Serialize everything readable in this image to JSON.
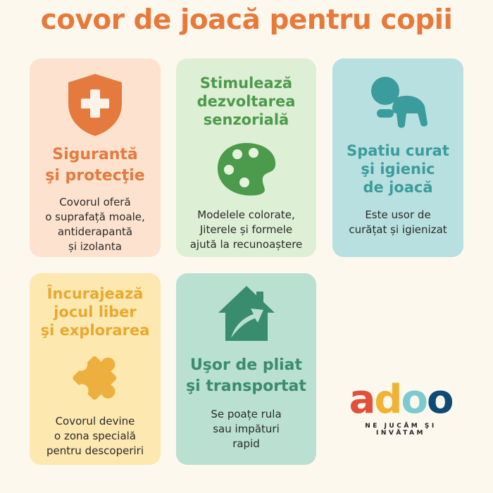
{
  "title": "covor de joacă pentru copii",
  "colors": {
    "background": "#FDF8EE",
    "title": "#E8793A",
    "orange": "#E57A3E",
    "green": "#4C9A4C",
    "teal": "#3A9C9C",
    "yellow": "#E8A92F",
    "mint": "#3A8C6E"
  },
  "cards": [
    {
      "icon": "shield-plus-icon",
      "title_lines": [
        "Sigurantă",
        "şi protecţie"
      ],
      "text_lines": [
        "Covorul oferă",
        "o suprafață moale,",
        "antiderapantă",
        "și izolanta"
      ]
    },
    {
      "icon": "palette-icon",
      "title_lines": [
        "Stimulează",
        "dezvoltarea",
        "senzorială"
      ],
      "text_lines": [
        "Modelele colorate,",
        "Jiterele și formele",
        "ajută la recunoaștere"
      ]
    },
    {
      "icon": "crawling-baby-icon",
      "title_lines": [
        "Spatiu curat",
        "şi igienic",
        "de joacă"
      ],
      "text_lines": [
        "Este usor de",
        "curățat și igienizat"
      ]
    },
    {
      "icon": "puzzle-piece-icon",
      "title_lines": [
        "Încurajează",
        "jocul liber",
        "şi explorarea"
      ],
      "text_lines": [
        "Covorul devine",
        "o zona specială",
        "pentru descoperiri"
      ]
    },
    {
      "icon": "house-arrow-icon",
      "title_lines": [
        "Uşor de pliat",
        "şi transportat"
      ],
      "text_lines": [
        "Se poațe rula",
        "sau impături",
        "rapid"
      ]
    }
  ],
  "logo": {
    "letters": [
      "a",
      "d",
      "o",
      "o"
    ],
    "letter_colors": [
      "#E0503A",
      "#F0B233",
      "#7CCACE",
      "#0E4A73"
    ],
    "tagline": "NE JUCĂM ŞI INVĂTAM"
  }
}
